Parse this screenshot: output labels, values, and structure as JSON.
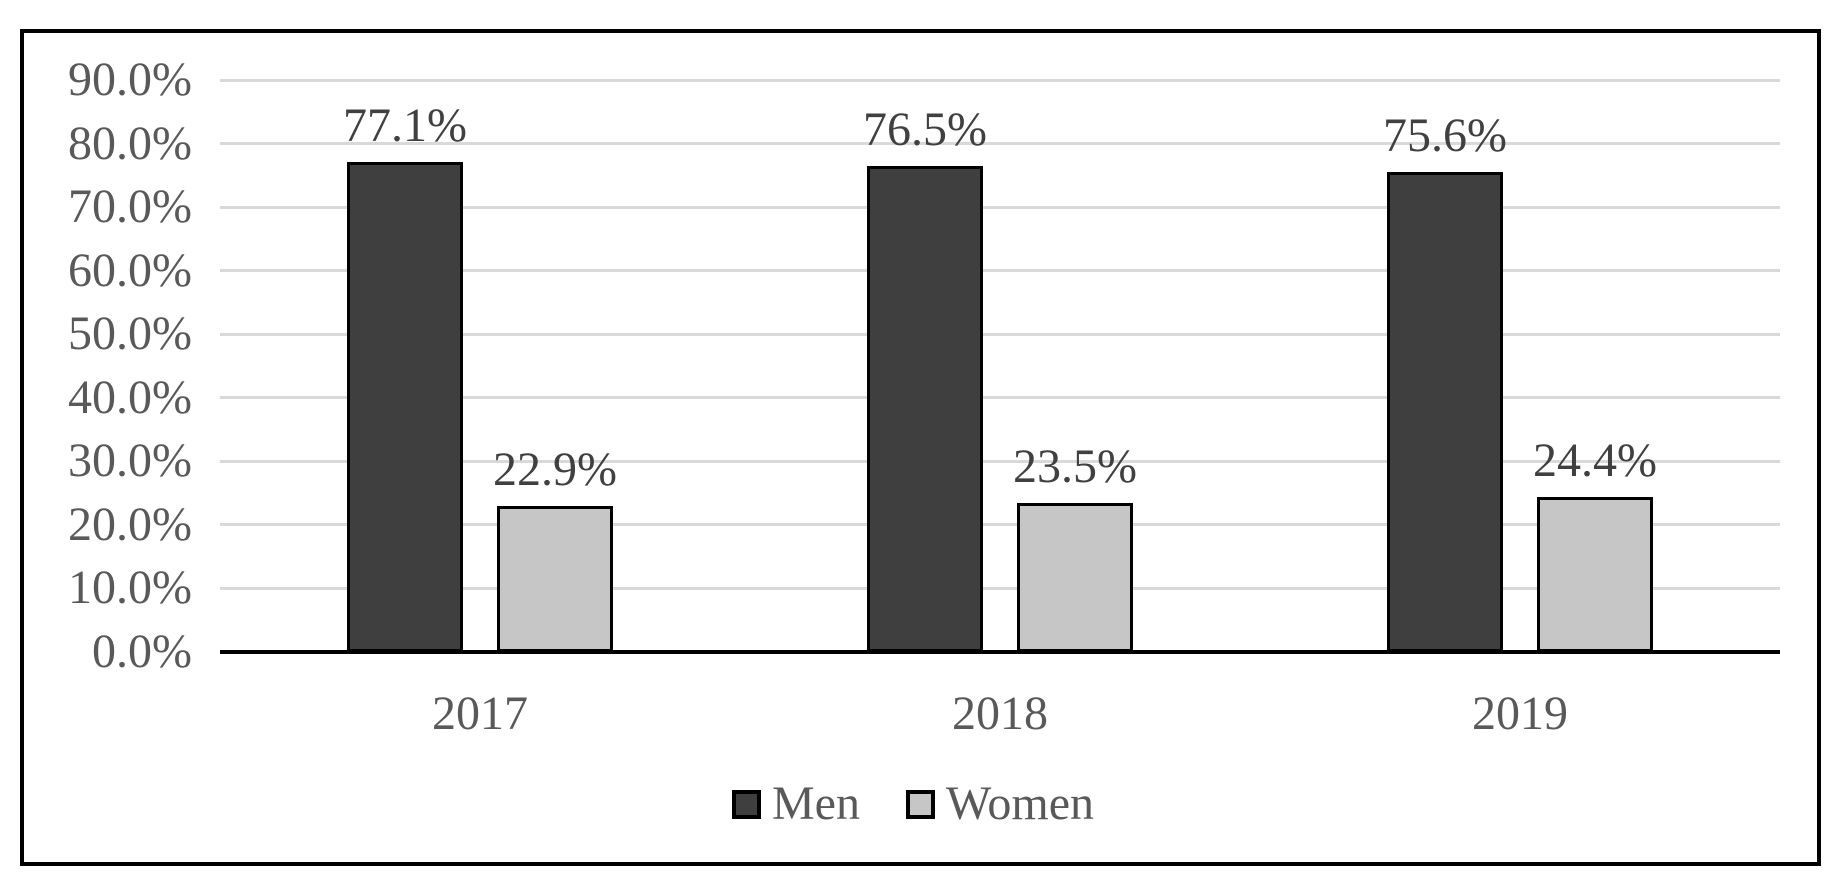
{
  "chart_data": {
    "type": "bar",
    "title": "",
    "categories": [
      "2017",
      "2018",
      "2019"
    ],
    "series": [
      {
        "name": "Men",
        "color": "#3f3f3f",
        "values": [
          77.1,
          76.5,
          75.6
        ],
        "labels": [
          "77.1%",
          "76.5%",
          "75.6%"
        ]
      },
      {
        "name": "Women",
        "color": "#c6c6c6",
        "values": [
          22.9,
          23.5,
          24.4
        ],
        "labels": [
          "22.9%",
          "23.5%",
          "24.4%"
        ]
      }
    ],
    "y_axis": {
      "min": 0,
      "max": 90,
      "step": 10,
      "tick_labels": [
        "0.0%",
        "10.0%",
        "20.0%",
        "30.0%",
        "40.0%",
        "50.0%",
        "60.0%",
        "70.0%",
        "80.0%",
        "90.0%"
      ]
    },
    "legend": {
      "position": "bottom",
      "entries": [
        "Men",
        "Women"
      ]
    },
    "grid": true,
    "data_labels": "outside-end",
    "style": {
      "gridline_color": "#d9d9d9",
      "axis_line_color": "#000000",
      "bar_border_color": "#000000",
      "frame_border_color": "#000000",
      "axis_text_color": "#595959",
      "data_label_color": "#404040",
      "background": "#ffffff"
    }
  }
}
